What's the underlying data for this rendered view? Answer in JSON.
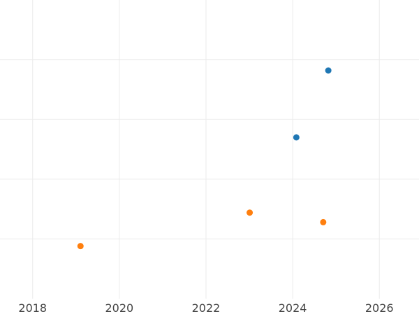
{
  "chart_data": {
    "type": "scatter",
    "x_axis_kind": "date",
    "xlim": [
      "2017-04-01",
      "2026-12-01"
    ],
    "ylim": [
      0,
      5
    ],
    "x_ticks": [
      "2018",
      "2020",
      "2022",
      "2024",
      "2026"
    ],
    "y_gridlines": [
      1,
      2,
      3,
      4
    ],
    "show_y_tick_labels": false,
    "grid": true,
    "legend": "none",
    "series": [
      {
        "color": "#1f77b4",
        "points": [
          {
            "x": "2024-02-01",
            "y": 2.7
          },
          {
            "x": "2024-10-28",
            "y": 3.82
          }
        ]
      },
      {
        "color": "#ff7f0e",
        "points": [
          {
            "x": "2019-02-08",
            "y": 0.88
          },
          {
            "x": "2023-01-04",
            "y": 1.44
          },
          {
            "x": "2024-09-15",
            "y": 1.28
          }
        ]
      }
    ]
  }
}
